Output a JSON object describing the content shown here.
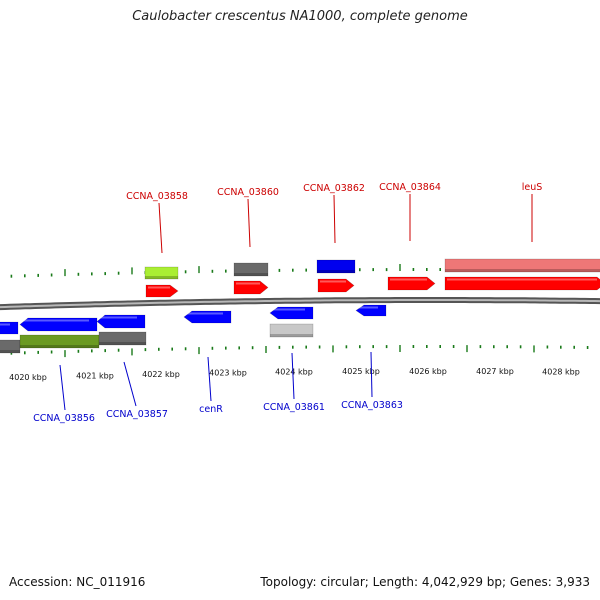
{
  "title": "Caulobacter crescentus NA1000, complete genome",
  "accession": "Accession: NC_011916",
  "summary": "Topology: circular; Length: 4,042,929 bp; Genes: 3,933",
  "colors": {
    "forward_gene": "#ff0000",
    "reverse_gene": "#0000ff",
    "forward_label": "#cc0000",
    "reverse_label": "#0000cc",
    "backbone": "#808080",
    "ticks": "#1a7a1a"
  },
  "scale": {
    "unit": "kbp",
    "tick_labels": [
      "4020 kbp",
      "4021 kbp",
      "4022 kbp",
      "4023 kbp",
      "4024 kbp",
      "4025 kbp",
      "4026 kbp",
      "4027 kbp",
      "4028 kbp"
    ]
  },
  "genes_forward": [
    "CCNA_03858",
    "CCNA_03860",
    "CCNA_03862",
    "CCNA_03864",
    "leuS"
  ],
  "genes_reverse": [
    "CCNA_03856",
    "CCNA_03857",
    "cenR",
    "CCNA_03861",
    "CCNA_03863"
  ]
}
